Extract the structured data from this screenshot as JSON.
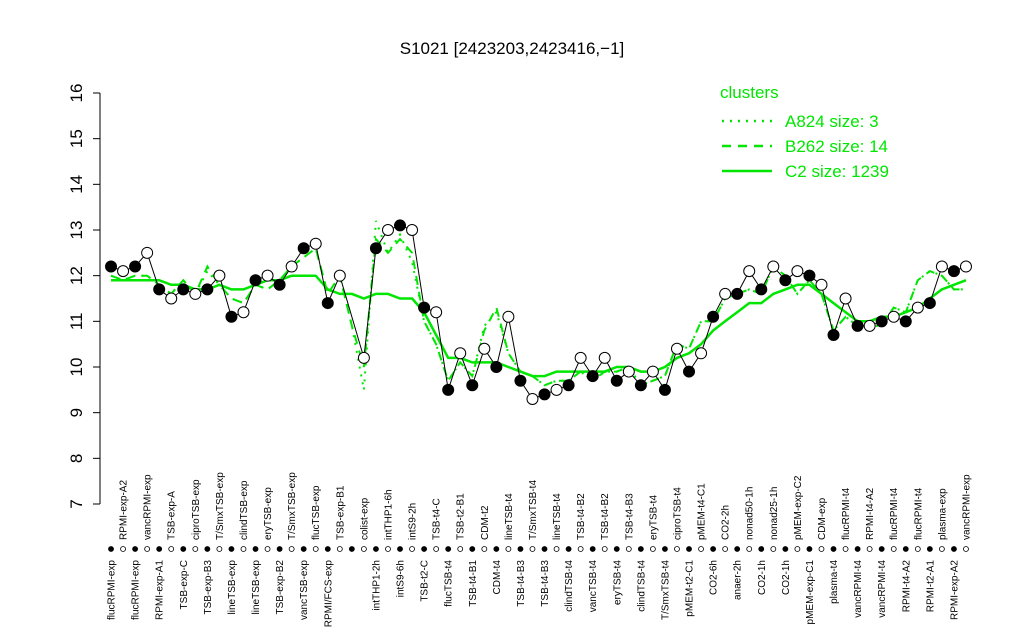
{
  "chart_data": {
    "type": "cluster-profile",
    "title": "S1021 [2423203,2423416,−1]",
    "ylim": [
      7,
      16
    ],
    "yticks": [
      7,
      8,
      9,
      10,
      11,
      12,
      13,
      14,
      15,
      16
    ],
    "legend_title": "clusters",
    "legend_position": "top-right",
    "categories": [
      "flucRPMI-exp",
      "RPMI-exp-A2",
      "flucRPMI-exp",
      "vancRPMI-exp",
      "RPMI-exp-A1",
      "TSB-exp-A",
      "TSB-exp-C",
      "ciproTSB-exp",
      "TSB-exp-B3",
      "T/SmxTSB-exp",
      "lineTSB-exp",
      "clindTSB-exp",
      "lineTSB-exp",
      "eryTSB-exp",
      "TSB-exp-B2",
      "T/SmxTSB-exp",
      "vancTSB-exp",
      "flucTSB-exp",
      "RPMI/FCS-exp",
      "TSB-exp-B1",
      null,
      "colist-exp",
      "intTHP1-2h",
      "intTHP1-6h",
      "intS9-6h",
      "intS9-2h",
      "TSB-t2-C",
      "TSB-t4-C",
      "flucTSB-t4",
      "TSB-t2-B1",
      "TSB-t4-B1",
      "CDM-t2",
      "CDM-t4",
      "lineTSB-t4",
      "TSB-t4-B3",
      "T/SmxTSB-t4",
      "TSB-t4-B3",
      "lineTSB-t4",
      "clindTSB-t4",
      "TSB-t4-B2",
      "vancTSB-t4",
      "TSB-t4-B2",
      "eryTSB-t4",
      "TSB-t4-B3",
      "clindTSB-t4",
      "eryTSB-t4",
      "T/SmxTSB-t4",
      "ciproTSB-t4",
      "pMEM-t2-C1",
      "pMEM-t4-C1",
      "CO2-6h",
      "CO2-2h",
      "anaer-2h",
      "nonad50-1h",
      "CO2-1h",
      "nonad25-1h",
      "CO2-1h",
      "pMEM-exp-C2",
      "pMEM-exp-C1",
      "CDM-exp",
      "plasma-t4",
      "flucRPMI-t4",
      "vancRPMI-t4",
      "RPMI-t4-A2",
      "vancRPMI-t4",
      "flucRPMI-t4",
      "RPMI-t4-A2",
      "flucRPMI-t4",
      "RPMI-t2-A1",
      "plasma-exp",
      "RPMI-exp-A2",
      "vancRPMI-exp"
    ],
    "values": [
      12.2,
      12.1,
      12.2,
      12.5,
      11.7,
      11.5,
      11.7,
      11.6,
      11.7,
      12.0,
      11.1,
      11.2,
      11.9,
      12.0,
      11.8,
      12.2,
      12.6,
      12.7,
      11.4,
      12.0,
      null,
      10.2,
      12.6,
      13.0,
      13.1,
      13.0,
      11.3,
      11.2,
      9.5,
      10.3,
      9.6,
      10.4,
      10.0,
      11.1,
      9.7,
      9.3,
      9.4,
      9.5,
      9.6,
      10.2,
      9.8,
      10.2,
      9.7,
      9.9,
      9.6,
      9.9,
      9.5,
      10.4,
      9.9,
      10.3,
      11.1,
      11.6,
      11.6,
      12.1,
      11.7,
      12.2,
      11.9,
      12.1,
      12.0,
      11.8,
      10.7,
      11.5,
      10.9,
      10.9,
      11.0,
      11.1,
      11.0,
      11.3,
      11.4,
      12.2,
      12.1,
      12.2
    ],
    "series": [
      {
        "name": "A824 size: 3",
        "color": "#00e600",
        "dash": "dotted",
        "values": [
          12.0,
          11.9,
          12.0,
          12.0,
          11.8,
          11.6,
          11.9,
          11.6,
          12.1,
          11.8,
          11.5,
          11.4,
          11.8,
          11.7,
          11.9,
          12.2,
          12.4,
          12.6,
          11.6,
          12.0,
          10.9,
          9.5,
          13.2,
          12.5,
          12.9,
          12.3,
          11.0,
          10.5,
          9.7,
          10.1,
          9.8,
          10.9,
          11.2,
          10.3,
          9.9,
          9.8,
          9.6,
          9.7,
          9.7,
          9.9,
          9.7,
          9.9,
          9.9,
          10.0,
          9.6,
          9.7,
          9.8,
          10.5,
          10.4,
          11.0,
          11.0,
          11.5,
          11.6,
          11.7,
          11.6,
          12.2,
          12.0,
          11.6,
          11.9,
          11.6,
          10.8,
          11.1,
          10.9,
          10.9,
          10.9,
          11.3,
          11.2,
          11.9,
          12.1,
          12.0,
          11.7,
          11.7
        ]
      },
      {
        "name": "B262 size: 14",
        "color": "#00e600",
        "dash": "dashed",
        "values": [
          12.0,
          11.9,
          12.0,
          12.0,
          11.8,
          11.6,
          11.9,
          11.6,
          12.2,
          11.8,
          11.5,
          11.4,
          11.8,
          11.7,
          11.9,
          12.2,
          12.4,
          12.6,
          11.6,
          12.0,
          10.9,
          10.0,
          12.8,
          12.5,
          12.8,
          12.5,
          11.0,
          10.5,
          9.7,
          10.1,
          9.8,
          10.8,
          11.3,
          10.3,
          9.9,
          9.8,
          9.6,
          9.7,
          9.7,
          9.9,
          9.7,
          9.9,
          9.9,
          10.0,
          9.6,
          9.7,
          9.8,
          10.5,
          10.4,
          11.0,
          11.0,
          11.5,
          11.6,
          11.7,
          11.6,
          12.2,
          12.0,
          11.6,
          11.9,
          11.6,
          10.8,
          11.1,
          10.9,
          10.9,
          10.9,
          11.3,
          11.2,
          11.9,
          12.1,
          12.0,
          11.7,
          11.7
        ]
      },
      {
        "name": "C2 size: 1239",
        "color": "#00e600",
        "dash": "solid",
        "values": [
          11.9,
          11.9,
          11.9,
          11.9,
          11.9,
          11.8,
          11.8,
          11.7,
          11.7,
          11.8,
          11.7,
          11.7,
          11.8,
          11.9,
          11.9,
          12.0,
          12.0,
          12.0,
          11.7,
          11.6,
          11.6,
          11.5,
          11.6,
          11.6,
          11.5,
          11.5,
          11.2,
          10.7,
          10.2,
          10.2,
          10.1,
          10.1,
          10.1,
          10.0,
          9.9,
          9.8,
          9.8,
          9.9,
          9.9,
          9.9,
          9.9,
          9.9,
          10.0,
          10.0,
          9.9,
          9.9,
          10.0,
          10.2,
          10.3,
          10.5,
          10.8,
          11.0,
          11.2,
          11.4,
          11.4,
          11.6,
          11.7,
          11.8,
          11.8,
          11.6,
          11.4,
          11.2,
          11.0,
          11.0,
          11.1,
          11.1,
          11.2,
          11.3,
          11.5,
          11.7,
          11.8,
          11.9
        ]
      }
    ]
  }
}
